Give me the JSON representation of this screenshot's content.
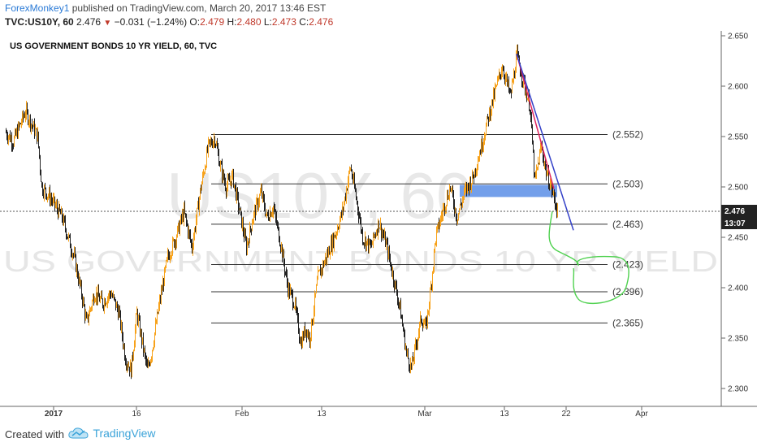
{
  "header": {
    "author": "ForexMonkey1",
    "published_text": "published on TradingView.com, March 20, 2017 13:46 EST",
    "symbol": "TVC:US10Y, 60",
    "last": "2.476",
    "change": "−0.031 (−1.24%)",
    "o_label": "O:",
    "o_value": "2.479",
    "h_label": "H:",
    "h_value": "2.480",
    "l_label": "L:",
    "l_value": "2.473",
    "c_label": "C:",
    "c_value": "2.476"
  },
  "footer": {
    "created_with": "Created with",
    "brand": "TradingView"
  },
  "colors": {
    "up": "#f7a21b",
    "down": "#222222",
    "zone": "#5b8ee6",
    "trend_red": "#e0245e",
    "trend_blue": "#3340c8",
    "projection": "#4fd14f",
    "axis_badge": "#222222"
  },
  "chart_data": {
    "type": "candlestick",
    "title": "US GOVERNMENT BONDS 10 YR YIELD, 60, TVC",
    "watermark_symbol": "US10Y, 60",
    "watermark_name": "US GOVERNMENT BONDS 10 YR YIELD",
    "ylim": [
      2.29,
      2.66
    ],
    "y_ticks": [
      "2.650",
      "2.600",
      "2.550",
      "2.500",
      "2.450",
      "2.400",
      "2.350",
      "2.300"
    ],
    "x_ticks": [
      "2017",
      "16",
      "Feb",
      "13",
      "Mar",
      "13",
      "22",
      "Apr"
    ],
    "current_price": "2.476",
    "countdown": "13:07",
    "levels": [
      {
        "value": 2.552,
        "label": "(2.552)"
      },
      {
        "value": 2.503,
        "label": "(2.503)"
      },
      {
        "value": 2.463,
        "label": "(2.463)"
      },
      {
        "value": 2.423,
        "label": "(2.423)"
      },
      {
        "value": 2.396,
        "label": "(2.396)"
      },
      {
        "value": 2.365,
        "label": "(2.365)"
      }
    ],
    "demand_zone": [
      2.49,
      2.502
    ],
    "price_path": [
      [
        0,
        2.555
      ],
      [
        10,
        2.545
      ],
      [
        25,
        2.575
      ],
      [
        40,
        2.55
      ],
      [
        45,
        2.5
      ],
      [
        55,
        2.49
      ],
      [
        70,
        2.47
      ],
      [
        85,
        2.43
      ],
      [
        95,
        2.39
      ],
      [
        100,
        2.365
      ],
      [
        110,
        2.395
      ],
      [
        120,
        2.385
      ],
      [
        130,
        2.395
      ],
      [
        140,
        2.375
      ],
      [
        148,
        2.33
      ],
      [
        155,
        2.318
      ],
      [
        162,
        2.375
      ],
      [
        170,
        2.34
      ],
      [
        175,
        2.318
      ],
      [
        180,
        2.335
      ],
      [
        190,
        2.385
      ],
      [
        200,
        2.43
      ],
      [
        210,
        2.45
      ],
      [
        220,
        2.475
      ],
      [
        230,
        2.44
      ],
      [
        240,
        2.495
      ],
      [
        250,
        2.54
      ],
      [
        258,
        2.549
      ],
      [
        265,
        2.52
      ],
      [
        272,
        2.5
      ],
      [
        280,
        2.51
      ],
      [
        290,
        2.47
      ],
      [
        297,
        2.44
      ],
      [
        305,
        2.47
      ],
      [
        315,
        2.495
      ],
      [
        322,
        2.47
      ],
      [
        330,
        2.48
      ],
      [
        340,
        2.44
      ],
      [
        348,
        2.4
      ],
      [
        356,
        2.385
      ],
      [
        364,
        2.345
      ],
      [
        370,
        2.36
      ],
      [
        375,
        2.35
      ],
      [
        385,
        2.41
      ],
      [
        395,
        2.43
      ],
      [
        405,
        2.45
      ],
      [
        415,
        2.475
      ],
      [
        425,
        2.52
      ],
      [
        432,
        2.49
      ],
      [
        440,
        2.45
      ],
      [
        450,
        2.44
      ],
      [
        460,
        2.465
      ],
      [
        470,
        2.44
      ],
      [
        478,
        2.41
      ],
      [
        486,
        2.38
      ],
      [
        494,
        2.335
      ],
      [
        500,
        2.32
      ],
      [
        505,
        2.34
      ],
      [
        512,
        2.37
      ],
      [
        518,
        2.36
      ],
      [
        524,
        2.4
      ],
      [
        530,
        2.45
      ],
      [
        540,
        2.48
      ],
      [
        548,
        2.5
      ],
      [
        556,
        2.47
      ],
      [
        566,
        2.495
      ],
      [
        576,
        2.51
      ],
      [
        586,
        2.54
      ],
      [
        595,
        2.57
      ],
      [
        605,
        2.6
      ],
      [
        612,
        2.62
      ],
      [
        622,
        2.59
      ],
      [
        630,
        2.63
      ],
      [
        638,
        2.605
      ],
      [
        646,
        2.58
      ],
      [
        652,
        2.505
      ],
      [
        660,
        2.54
      ],
      [
        666,
        2.515
      ],
      [
        672,
        2.5
      ],
      [
        680,
        2.476
      ]
    ],
    "trendline_red": [
      [
        630,
        2.632
      ],
      [
        676,
        2.498
      ]
    ],
    "trendline_blue": [
      [
        630,
        2.632
      ],
      [
        700,
        2.457
      ]
    ]
  }
}
